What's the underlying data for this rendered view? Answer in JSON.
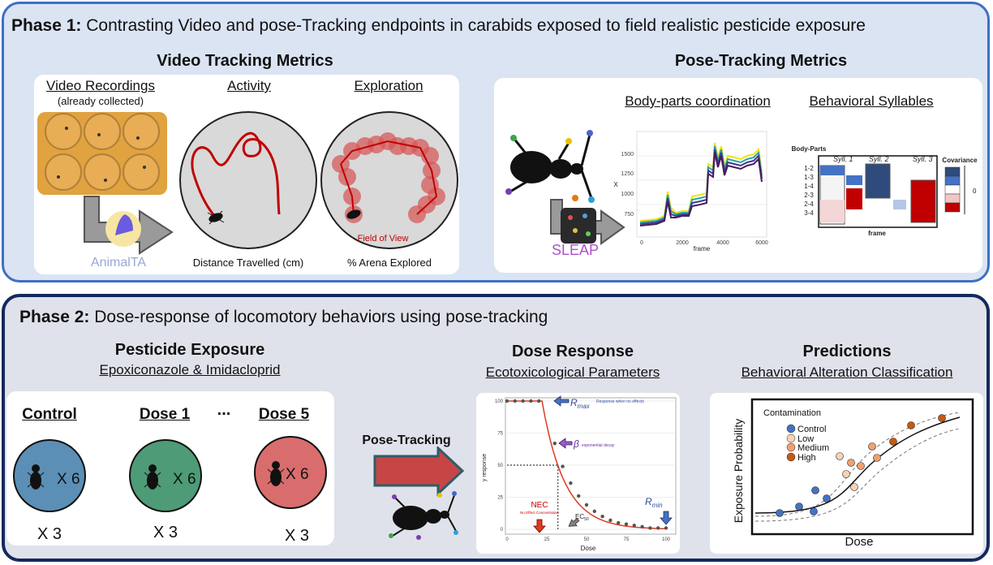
{
  "phase1": {
    "label": "Phase 1:",
    "title": "Contrasting Video and pose-Tracking endpoints in carabids exposed to field realistic pesticide exposure",
    "video": {
      "heading": "Video Tracking Metrics",
      "recordings_label": "Video Recordings",
      "recordings_note": "(already collected)",
      "software": "AnimalTA",
      "activity_label": "Activity",
      "activity_caption": "Distance Travelled (cm)",
      "exploration_label": "Exploration",
      "exploration_caption": "% Arena Explored",
      "field_of_view": "Field of View"
    },
    "pose": {
      "heading": "Pose-Tracking Metrics",
      "software": "SLEAP",
      "bodyparts_label": "Body-parts coordination",
      "syllables_label": "Behavioral Syllables",
      "trace_xlabel": "frame",
      "trace_ylabel": "X",
      "trace_yticks": [
        "1500",
        "1250",
        "1000",
        "750"
      ],
      "trace_xticks": [
        "0",
        "2000",
        "4000",
        "6000"
      ],
      "matrix_title": "Body-Parts",
      "matrix_rows": [
        "1-2",
        "1-3",
        "1-4",
        "2-3",
        "2-4",
        "3-4"
      ],
      "syllables": [
        "Syll. 1",
        "Syll. 2",
        "Syll. 3"
      ],
      "matrix_xlabel": "frame",
      "covariance_label": "Covariance",
      "covariance_zero": "0"
    }
  },
  "phase2": {
    "label": "Phase 2:",
    "title": "Dose-response of locomotory behaviors using pose-tracking",
    "exposure": {
      "heading": "Pesticide Exposure",
      "subheading": "Epoxiconazole & Imidacloprid",
      "groups": [
        "Control",
        "Dose 1",
        "...",
        "Dose 5"
      ],
      "count_label": "X 6",
      "replicate_label": "X 3",
      "group_colors": [
        "#5b8fb5",
        "#4e9b77",
        "#d96d6d"
      ]
    },
    "arrow_label": "Pose-Tracking",
    "dose_response": {
      "heading": "Dose Response",
      "subheading": "Ecotoxicological Parameters",
      "xlabel": "Dose",
      "ylabel": "y response",
      "xticks": [
        "0",
        "25",
        "50",
        "75",
        "100"
      ],
      "yticks": [
        "100",
        "75",
        "50",
        "25",
        "0"
      ],
      "rmax": "R",
      "rmax_sub": "max",
      "rmax_note": "Response when no effects",
      "beta": "β",
      "beta_note": "exponential decay",
      "nec": "NEC",
      "nec_note": "No Effect Concentration",
      "ec50": "EC",
      "ec50_sub": "50",
      "rmin": "R",
      "rmin_sub": "min",
      "points": [
        {
          "dose": 0,
          "y": 100
        },
        {
          "dose": 5,
          "y": 100
        },
        {
          "dose": 10,
          "y": 100
        },
        {
          "dose": 15,
          "y": 100
        },
        {
          "dose": 20,
          "y": 100
        },
        {
          "dose": 30,
          "y": 67
        },
        {
          "dose": 35,
          "y": 49
        },
        {
          "dose": 40,
          "y": 36
        },
        {
          "dose": 45,
          "y": 26
        },
        {
          "dose": 50,
          "y": 19
        },
        {
          "dose": 55,
          "y": 14
        },
        {
          "dose": 60,
          "y": 10
        },
        {
          "dose": 65,
          "y": 7
        },
        {
          "dose": 70,
          "y": 5
        },
        {
          "dose": 75,
          "y": 4
        },
        {
          "dose": 80,
          "y": 3
        },
        {
          "dose": 85,
          "y": 2
        },
        {
          "dose": 90,
          "y": 1
        },
        {
          "dose": 95,
          "y": 1
        },
        {
          "dose": 100,
          "y": 1
        }
      ]
    },
    "predictions": {
      "heading": "Predictions",
      "subheading": "Behavioral Alteration Classification",
      "xlabel": "Dose",
      "ylabel": "Exposure Probability",
      "legend_title": "Contamination",
      "legend": [
        {
          "name": "Control",
          "color": "#4472c4"
        },
        {
          "name": "Low",
          "color": "#fad3b5"
        },
        {
          "name": "Medium",
          "color": "#f0a070"
        },
        {
          "name": "High",
          "color": "#c55a11"
        }
      ]
    }
  }
}
